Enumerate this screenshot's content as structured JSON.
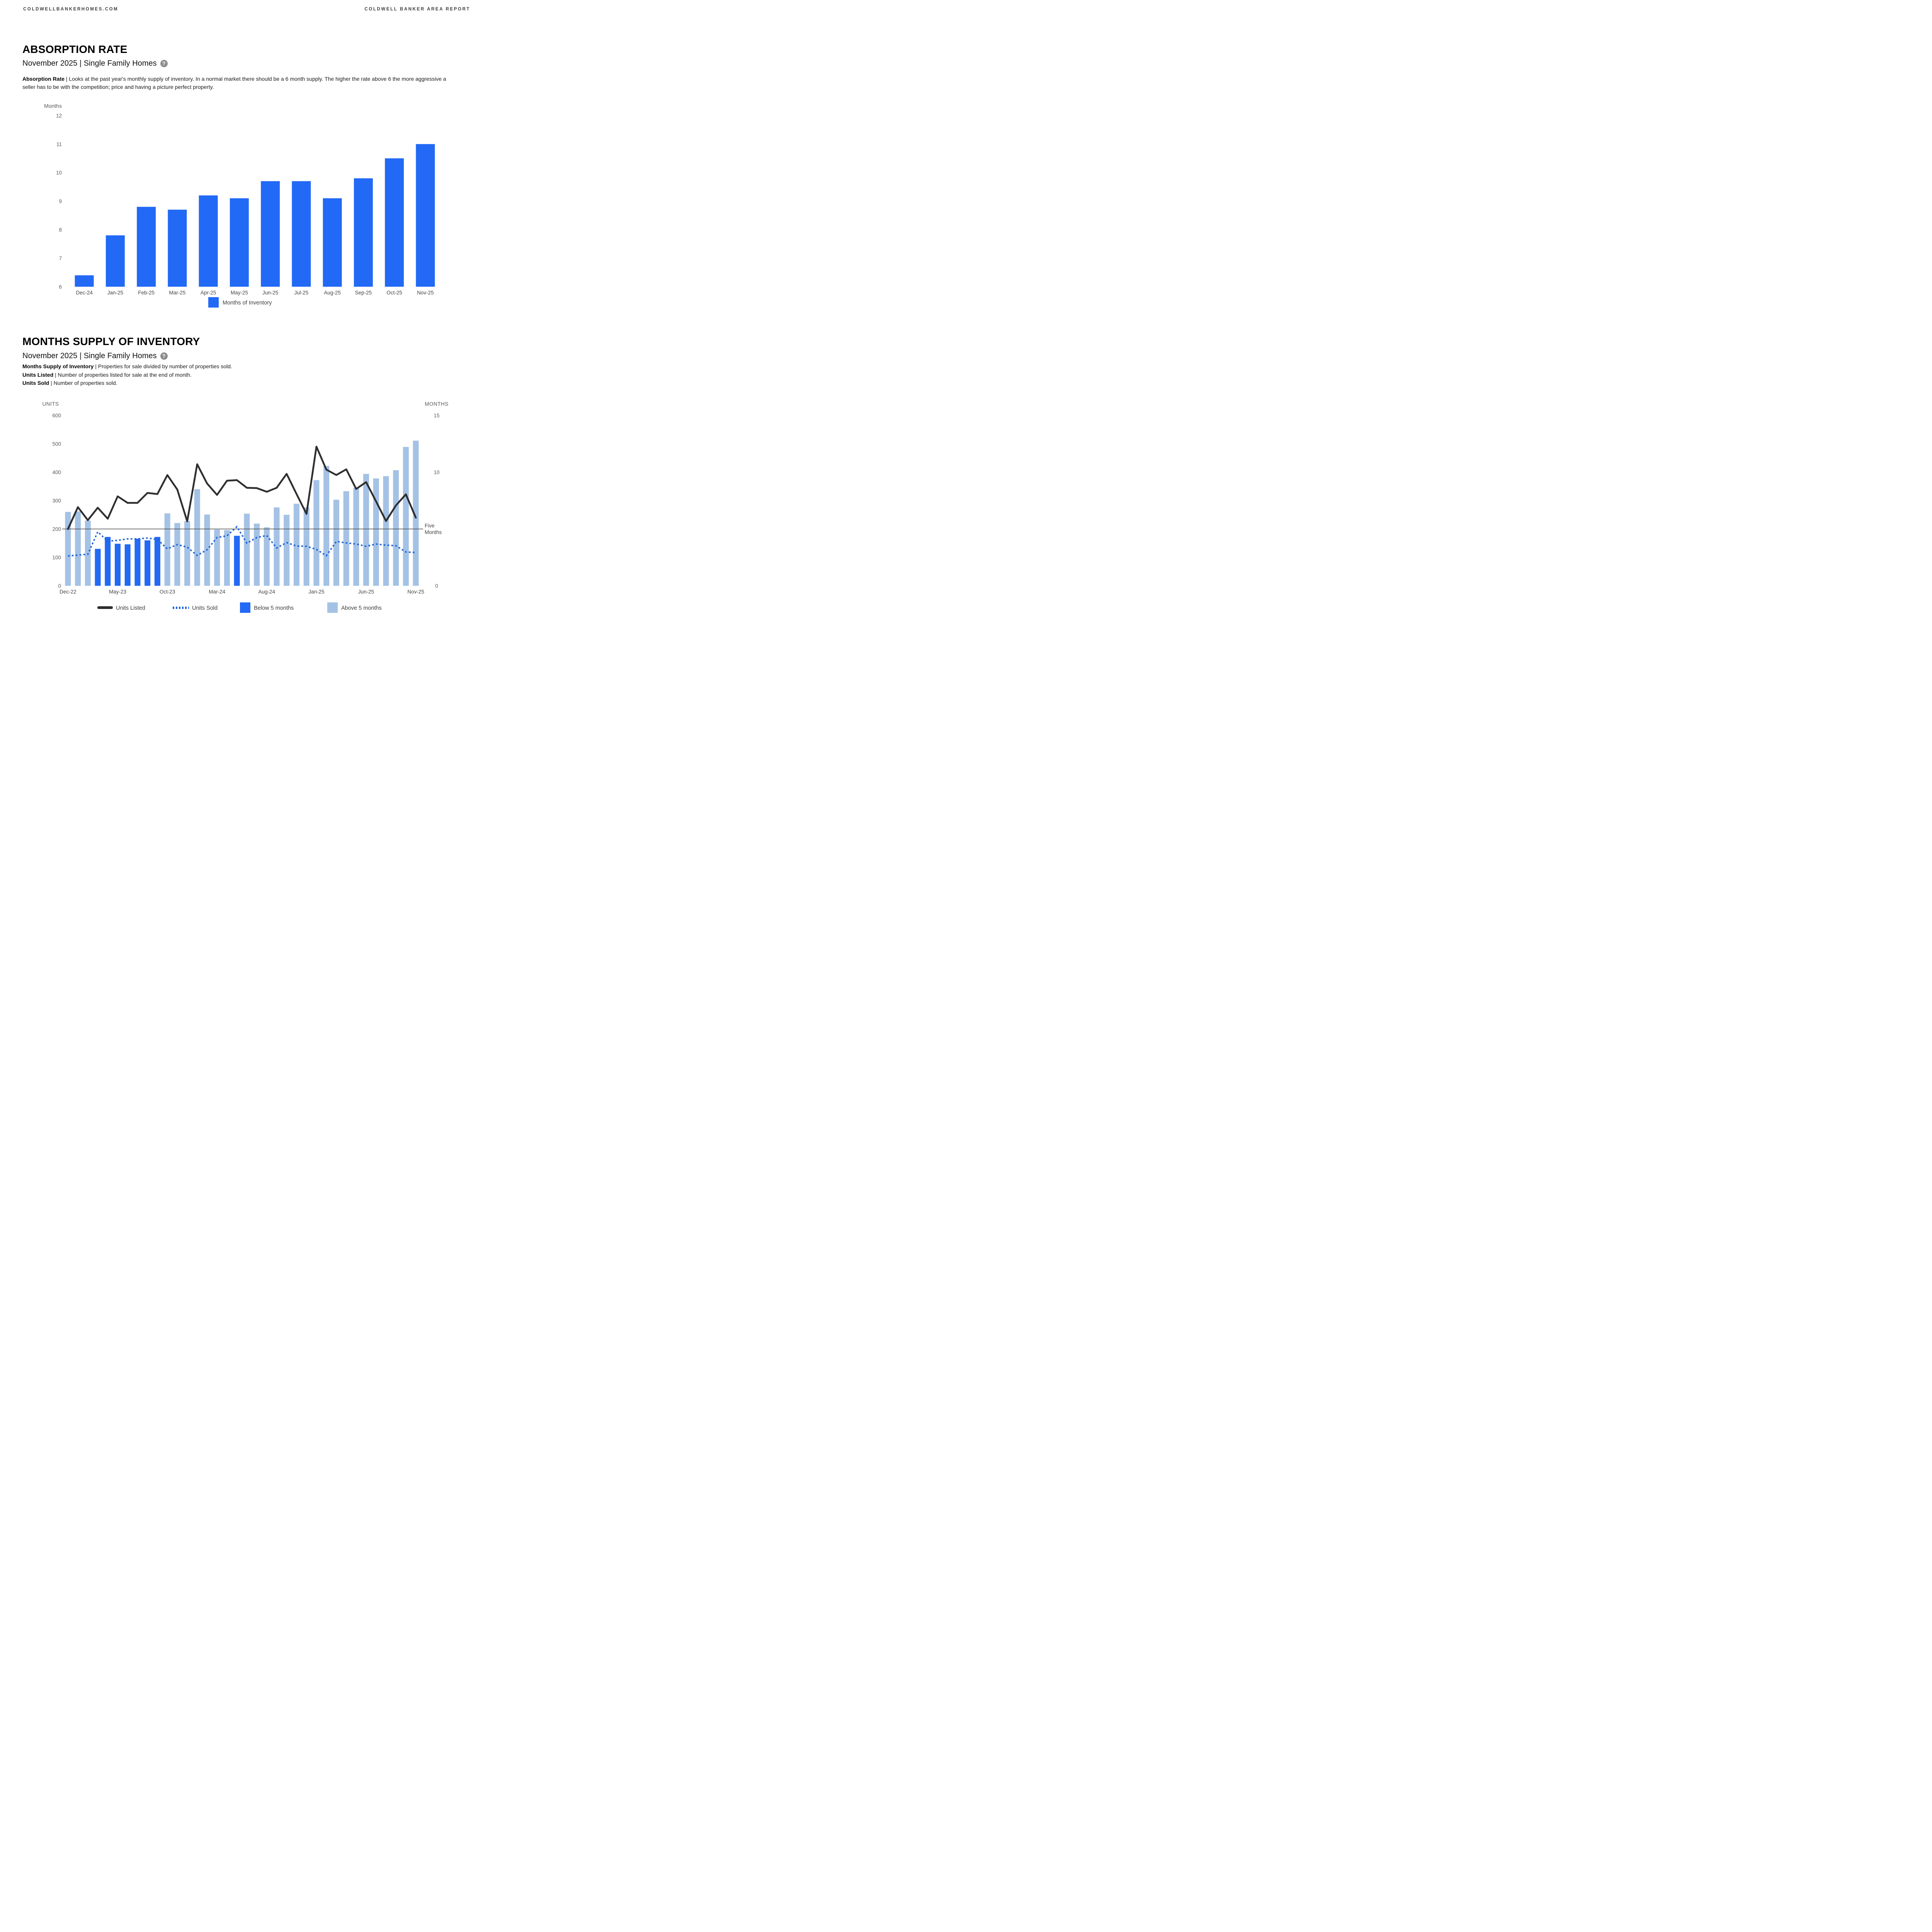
{
  "header": {
    "left": "COLDWELLBANKERHOMES.COM",
    "right": "COLDWELL BANKER AREA REPORT"
  },
  "sections": [
    {
      "title": "ABSORPTION RATE",
      "subtitle": "November 2025 | Single Family Homes",
      "help_icon": "?",
      "description_lead": "Absorption Rate",
      "description_rest": " | Looks at the past year's monthly supply of inventory. In a normal market there should be a 6 month supply. The higher the rate above 6 the more aggressive a seller has to be with the competition; price and having a picture perfect property."
    },
    {
      "title": "MONTHS SUPPLY OF INVENTORY",
      "subtitle": "November 2025 | Single Family Homes",
      "help_icon": "?",
      "definitions": [
        {
          "term": "Months Supply of Inventory",
          "text": " | Properties for sale divided by number of properties sold."
        },
        {
          "term": "Units Listed",
          "text": " | Number of properties listed for sale at the end of month."
        },
        {
          "term": "Units Sold",
          "text": " | Number of properties sold."
        }
      ]
    }
  ],
  "colors": {
    "bar_blue": "#2269f5",
    "light_blue": "#a4c2e5",
    "line_dark": "#2e2e2e",
    "dotted_blue": "#1f63d8",
    "reference_line": "#4d4d4d",
    "axis_text": "#595959",
    "label_text": "#444444",
    "legend_text": "#3d3d3d",
    "help_icon_bg": "#8d8d8d"
  },
  "chart_data": [
    {
      "type": "bar",
      "axis_title": "Months",
      "categories": [
        "Dec-24",
        "Jan-25",
        "Feb-25",
        "Mar-25",
        "Apr-25",
        "May-25",
        "Jun-25",
        "Jul-25",
        "Aug-25",
        "Sep-25",
        "Oct-25",
        "Nov-25"
      ],
      "values": [
        6.4,
        7.8,
        8.8,
        8.7,
        9.2,
        9.1,
        9.7,
        9.7,
        9.1,
        9.8,
        10.5,
        11.0
      ],
      "ylim": [
        6,
        12
      ],
      "yticks": [
        12,
        11,
        10,
        9,
        8,
        7,
        6
      ],
      "grid": false,
      "legend": [
        {
          "label": "Months of Inventory",
          "swatch": "square-dark"
        }
      ],
      "legend_position": "bottom-center"
    },
    {
      "type": "combo",
      "left_axis": {
        "title": "UNITS",
        "ticks": [
          600,
          500,
          400,
          300,
          200,
          100,
          0
        ],
        "range": [
          0,
          600
        ]
      },
      "right_axis": {
        "title": "MONTHS",
        "top_tick": "15",
        "mid_tick": "10",
        "zero_tick": "0",
        "range": [
          0,
          15
        ]
      },
      "reference_line": {
        "value_units": 200,
        "label_line1": "Five",
        "label_line2": "Months"
      },
      "categories": [
        "Dec-22",
        "Jan-23",
        "Feb-23",
        "Mar-23",
        "Apr-23",
        "May-23",
        "Jun-23",
        "Jul-23",
        "Aug-23",
        "Sep-23",
        "Oct-23",
        "Nov-23",
        "Dec-23",
        "Jan-24",
        "Feb-24",
        "Mar-24",
        "Apr-24",
        "May-24",
        "Jun-24",
        "Jul-24",
        "Aug-24",
        "Sep-24",
        "Oct-24",
        "Nov-24",
        "Dec-24",
        "Jan-25",
        "Feb-25",
        "Mar-25",
        "Apr-25",
        "May-25",
        "Jun-25",
        "Jul-25",
        "Aug-25",
        "Sep-25",
        "Oct-25",
        "Nov-25"
      ],
      "x_tick_labels": [
        "Dec-22",
        "May-23",
        "Oct-23",
        "Mar-24",
        "Aug-24",
        "Jan-25",
        "Jun-25",
        "Nov-25"
      ],
      "x_tick_every": 5,
      "bars": {
        "values": [
          260,
          262,
          230,
          130,
          172,
          148,
          146,
          166,
          160,
          172,
          255,
          221,
          228,
          340,
          251,
          198,
          196,
          176,
          254,
          219,
          206,
          276,
          250,
          289,
          276,
          372,
          422,
          303,
          333,
          345,
          394,
          378,
          386,
          407,
          489,
          511
        ],
        "status": [
          "above",
          "above",
          "above",
          "below",
          "below",
          "below",
          "below",
          "below",
          "below",
          "below",
          "above",
          "above",
          "above",
          "above",
          "above",
          "above",
          "above",
          "below",
          "above",
          "above",
          "above",
          "above",
          "above",
          "above",
          "above",
          "above",
          "above",
          "above",
          "above",
          "above",
          "above",
          "above",
          "above",
          "above",
          "above",
          "above"
        ]
      },
      "series": [
        {
          "name": "Units Listed",
          "style": "solid",
          "values": [
            200,
            277,
            231,
            275,
            236,
            315,
            292,
            292,
            327,
            323,
            390,
            339,
            227,
            428,
            360,
            320,
            370,
            372,
            345,
            344,
            331,
            345,
            394,
            323,
            253,
            490,
            409,
            390,
            410,
            341,
            365,
            297,
            228,
            283,
            322,
            240
          ]
        },
        {
          "name": "Units Sold",
          "style": "dotted",
          "values": [
            105,
            108,
            111,
            190,
            157,
            160,
            165,
            165,
            168,
            163,
            130,
            145,
            136,
            107,
            127,
            170,
            176,
            208,
            150,
            170,
            177,
            133,
            152,
            140,
            139,
            128,
            106,
            156,
            151,
            147,
            139,
            147,
            143,
            141,
            119,
            117
          ]
        }
      ],
      "legend": [
        {
          "label": "Units Listed",
          "swatch": "line-solid"
        },
        {
          "label": "Units Sold",
          "swatch": "line-dotted"
        },
        {
          "label": "Below 5 months",
          "swatch": "square-dark"
        },
        {
          "label": "Above 5 months",
          "swatch": "square-light"
        }
      ]
    }
  ]
}
